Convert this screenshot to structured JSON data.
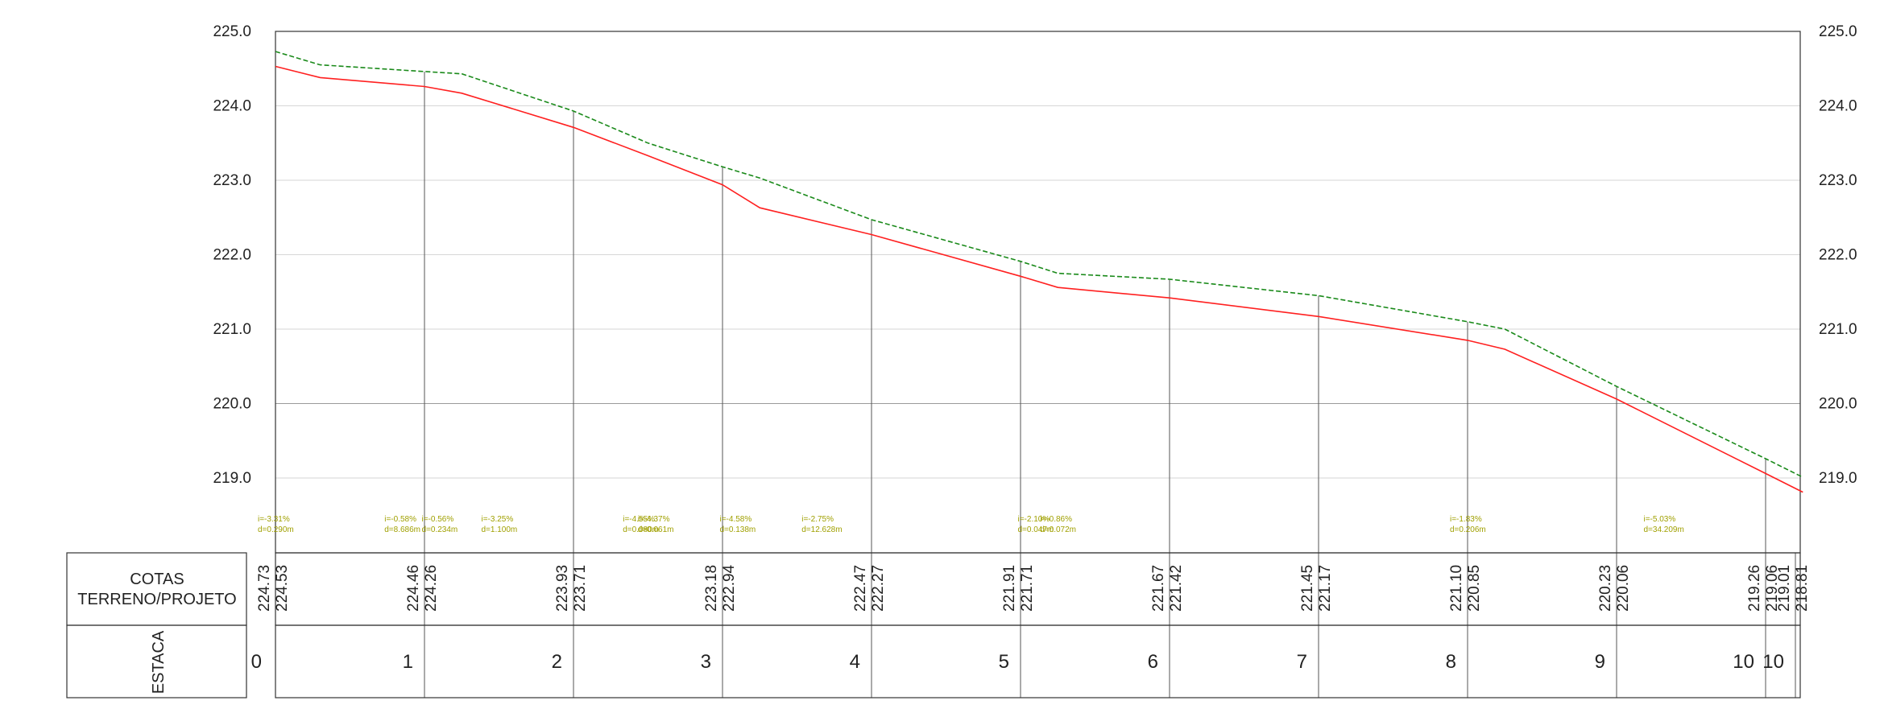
{
  "chart_data": {
    "type": "line",
    "title": "",
    "ylim": [
      218.5,
      225.0
    ],
    "y_ticks": [
      "225.0",
      "224.0",
      "223.0",
      "222.0",
      "221.0",
      "220.0",
      "219.0"
    ],
    "y_tick_values": [
      225.0,
      224.0,
      223.0,
      222.0,
      221.0,
      220.0,
      219.0
    ],
    "grid": true,
    "x_label_stations": [
      "0",
      "1",
      "2",
      "3",
      "4",
      "5",
      "6",
      "7",
      "8",
      "9",
      "10",
      "10"
    ],
    "station_positions": [
      0,
      1,
      2,
      3,
      4,
      5,
      6,
      7,
      8,
      9,
      10,
      10.2
    ],
    "series": [
      {
        "name": "",
        "color": "#1a8a1a",
        "style": "dashed",
        "x": [
          0,
          0.3,
          1.0,
          1.25,
          2.0,
          2.5,
          3.0,
          3.25,
          4.0,
          5.0,
          5.25,
          6.0,
          7.0,
          8.0,
          8.25,
          9.0,
          10.0,
          10.25
        ],
        "values": [
          224.73,
          224.55,
          224.46,
          224.43,
          223.93,
          223.5,
          223.18,
          223.03,
          222.47,
          221.91,
          221.75,
          221.67,
          221.45,
          221.1,
          221.0,
          220.23,
          219.26,
          219.01
        ]
      },
      {
        "name": "",
        "color": "#ff2020",
        "style": "solid",
        "x": [
          0,
          0.3,
          1.0,
          1.25,
          2.0,
          2.5,
          3.0,
          3.25,
          4.0,
          5.0,
          5.25,
          6.0,
          7.0,
          8.0,
          8.25,
          9.0,
          10.0,
          10.25
        ],
        "values": [
          224.53,
          224.38,
          224.26,
          224.17,
          223.71,
          223.33,
          222.94,
          222.63,
          222.27,
          221.71,
          221.56,
          221.42,
          221.17,
          220.85,
          220.73,
          220.06,
          219.06,
          218.81
        ]
      }
    ],
    "cotas": {
      "row_label_1": "COTAS",
      "row_label_2": "TERRENO/PROJETO",
      "pairs": [
        {
          "terreno": "224.73",
          "projeto": "224.53"
        },
        {
          "terreno": "224.46",
          "projeto": "224.26"
        },
        {
          "terreno": "223.93",
          "projeto": "223.71"
        },
        {
          "terreno": "223.18",
          "projeto": "222.94"
        },
        {
          "terreno": "222.47",
          "projeto": "222.27"
        },
        {
          "terreno": "221.91",
          "projeto": "221.71"
        },
        {
          "terreno": "221.67",
          "projeto": "221.42"
        },
        {
          "terreno": "221.45",
          "projeto": "221.17"
        },
        {
          "terreno": "221.10",
          "projeto": "220.85"
        },
        {
          "terreno": "220.23",
          "projeto": "220.06"
        },
        {
          "terreno": "219.26",
          "projeto": "219.06"
        },
        {
          "terreno": "219.01",
          "projeto": "218.81"
        }
      ]
    },
    "estaca_label": "ESTACA",
    "slope_annotations": [
      {
        "x": 0.0,
        "i": "i=-3.31%",
        "d": "d=0.290m"
      },
      {
        "x": 0.85,
        "i": "i=-0.58%",
        "d": "d=8.686m"
      },
      {
        "x": 1.1,
        "i": "i=-0.56%",
        "d": "d=0.234m"
      },
      {
        "x": 1.5,
        "i": "i=-3.25%",
        "d": "d=1.100m"
      },
      {
        "x": 2.45,
        "i": "i=-4.55%",
        "d": "d=0.080m"
      },
      {
        "x": 2.55,
        "i": "i=-4.37%",
        "d": "d=0.061m"
      },
      {
        "x": 3.1,
        "i": "i=-4.58%",
        "d": "d=0.138m"
      },
      {
        "x": 3.65,
        "i": "i=-2.75%",
        "d": "d=12.628m"
      },
      {
        "x": 5.1,
        "i": "i=-2.10%",
        "d": "d=0.047m"
      },
      {
        "x": 5.25,
        "i": "i=-0.86%",
        "d": "d=0.072m"
      },
      {
        "x": 8.0,
        "i": "i=-1.83%",
        "d": "d=0.206m"
      },
      {
        "x": 9.3,
        "i": "i=-5.03%",
        "d": "d=34.209m"
      }
    ]
  }
}
